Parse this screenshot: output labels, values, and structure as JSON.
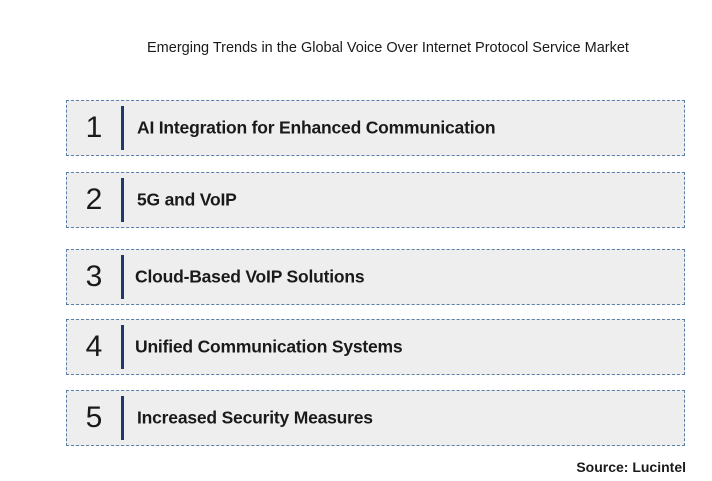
{
  "title": "Emerging Trends in the Global Voice Over Internet Protocol Service Market",
  "trends": [
    {
      "number": "1",
      "label": "AI Integration for Enhanced Communication"
    },
    {
      "number": "2",
      "label": "5G and VoIP"
    },
    {
      "number": "3",
      "label": "Cloud-Based VoIP Solutions"
    },
    {
      "number": "4",
      "label": "Unified Communication Systems"
    },
    {
      "number": "5",
      "label": "Increased Security Measures"
    }
  ],
  "source": "Source: Lucintel",
  "colors": {
    "box_fill": "#eeeeee",
    "box_border": "#5a7fa8",
    "accent_bar": "#1f3a68"
  }
}
